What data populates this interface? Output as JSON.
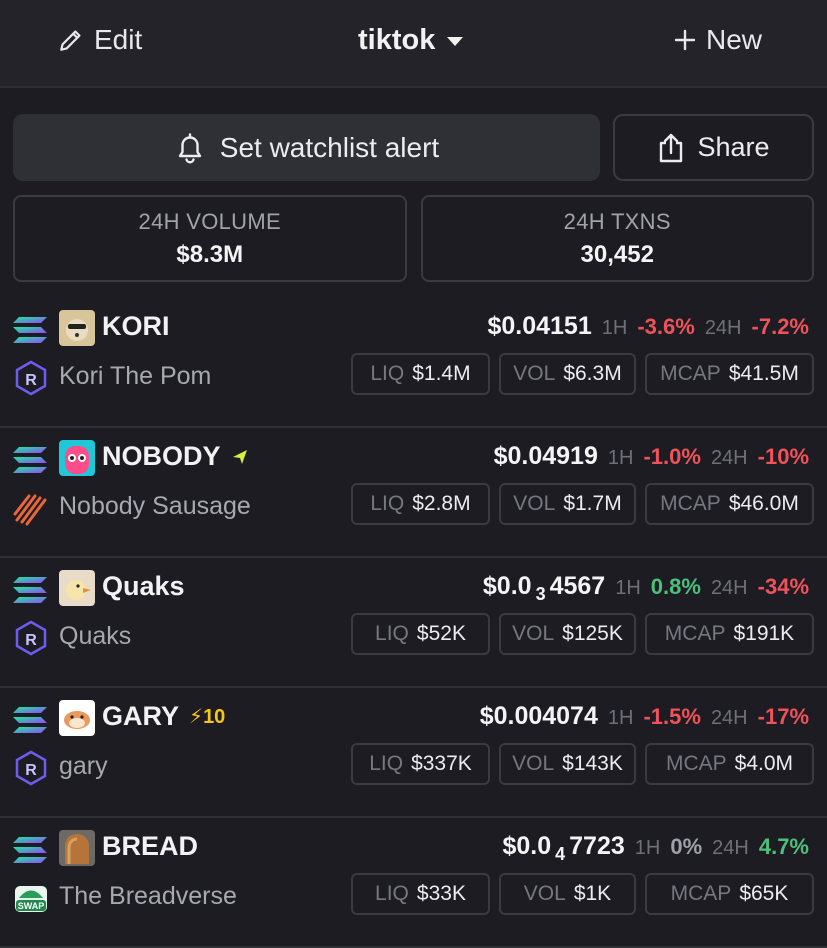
{
  "header": {
    "edit_label": "Edit",
    "watchlist_title": "tiktok",
    "new_label": "New"
  },
  "actions": {
    "alert_label": "Set watchlist alert",
    "share_label": "Share"
  },
  "stats": {
    "volume_label": "24H VOLUME",
    "volume_value": "$8.3M",
    "txns_label": "24H TXNS",
    "txns_value": "30,452"
  },
  "labels": {
    "h1": "1H",
    "h24": "24H",
    "liq": "LIQ",
    "vol": "VOL",
    "mcap": "MCAP"
  },
  "tokens": [
    {
      "symbol": "KORI",
      "name": "Kori The Pom",
      "boost": "",
      "price_pre": "$0.04151",
      "price_sub": "",
      "price_post": "",
      "change_1h": "-3.6%",
      "change_24h": "-7.2%",
      "liq": "$1.4M",
      "vol": "$6.3M",
      "mcap": "$41.5M",
      "dex_icon": "raydium-icon",
      "avatar_icon": "dog-avatar-icon"
    },
    {
      "symbol": "NOBODY",
      "name": "Nobody Sausage",
      "boost": "",
      "price_pre": "$0.04919",
      "price_sub": "",
      "price_post": "",
      "change_1h": "-1.0%",
      "change_24h": "-10%",
      "liq": "$2.8M",
      "vol": "$1.7M",
      "mcap": "$46.0M",
      "dex_icon": "pumpfun-icon",
      "avatar_icon": "pink-character-avatar-icon"
    },
    {
      "symbol": "Quaks",
      "name": "Quaks",
      "boost": "",
      "price_pre": "$0.0",
      "price_sub": "3",
      "price_post": "4567",
      "change_1h": "0.8%",
      "change_24h": "-34%",
      "liq": "$52K",
      "vol": "$125K",
      "mcap": "$191K",
      "dex_icon": "raydium-icon",
      "avatar_icon": "duck-avatar-icon"
    },
    {
      "symbol": "GARY",
      "name": "gary",
      "boost": "10",
      "price_pre": "$0.004074",
      "price_sub": "",
      "price_post": "",
      "change_1h": "-1.5%",
      "change_24h": "-17%",
      "liq": "$337K",
      "vol": "$143K",
      "mcap": "$4.0M",
      "dex_icon": "raydium-icon",
      "avatar_icon": "hamster-avatar-icon"
    },
    {
      "symbol": "BREAD",
      "name": "The Breadverse",
      "boost": "",
      "price_pre": "$0.0",
      "price_sub": "4",
      "price_post": "7723",
      "change_1h": "0%",
      "change_24h": "4.7%",
      "liq": "$33K",
      "vol": "$1K",
      "mcap": "$65K",
      "dex_icon": "swap-icon",
      "avatar_icon": "bread-avatar-icon"
    }
  ],
  "colors": {
    "background": "#1c1c22",
    "negative": "#f0525a",
    "positive": "#4cc07a",
    "boost": "#f5c518"
  }
}
